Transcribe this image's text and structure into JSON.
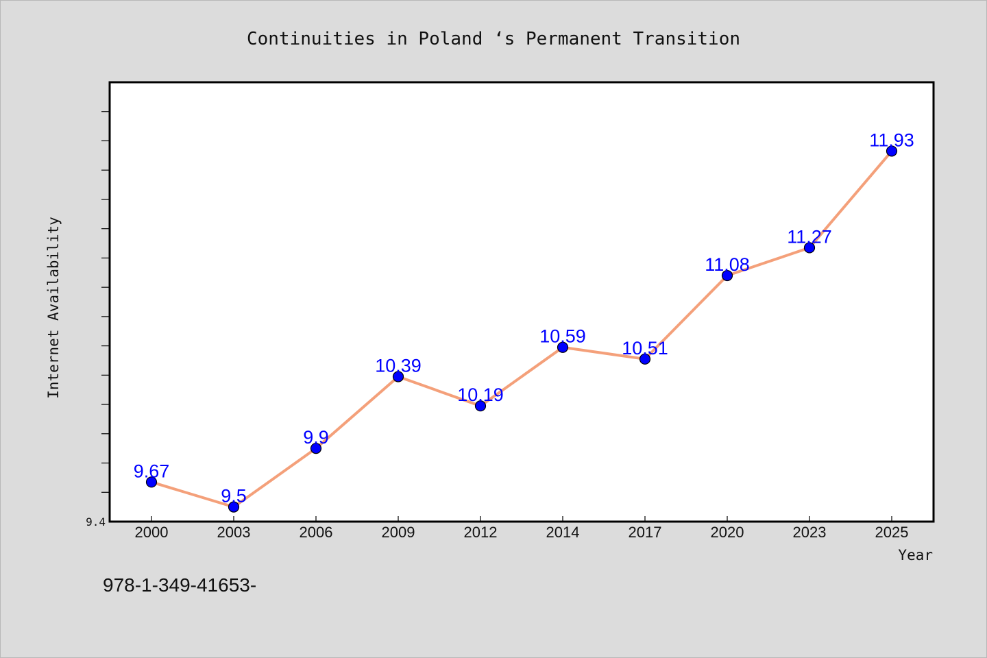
{
  "chart_data": {
    "type": "line",
    "title": "Continuities in Poland ‘s Permanent Transition",
    "xlabel": "Year",
    "ylabel": "Internet Availability",
    "categories": [
      "2000",
      "2003",
      "2006",
      "2009",
      "2012",
      "2014",
      "2017",
      "2020",
      "2023",
      "2025"
    ],
    "series": [
      {
        "values": [
          9.67,
          9.5,
          9.9,
          10.39,
          10.19,
          10.59,
          10.51,
          11.08,
          11.27,
          11.93
        ],
        "labels": [
          "9.67",
          "9.5",
          "9.9",
          "10.39",
          "10.19",
          "10.59",
          "10.51",
          "11.08",
          "11.27",
          "11.93"
        ]
      }
    ],
    "ylim": [
      9.4,
      12.4
    ],
    "y_tick_label": "9.4",
    "grid": false,
    "colors": {
      "line": "#f4a07a",
      "marker": "#0000ff",
      "data_label": "#0000ff",
      "plot_background": "#ffffff",
      "page_background": "#dcdcdc"
    }
  },
  "footnote": "978-1-349-41653-"
}
